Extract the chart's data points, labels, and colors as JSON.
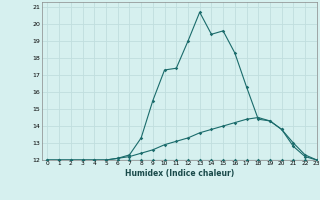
{
  "xlabel": "Humidex (Indice chaleur)",
  "background_color": "#d6f0ef",
  "grid_color": "#c0dede",
  "line_color": "#1a6b6b",
  "xlim": [
    -0.5,
    23
  ],
  "ylim": [
    12,
    21.3
  ],
  "xticks": [
    0,
    1,
    2,
    3,
    4,
    5,
    6,
    7,
    8,
    9,
    10,
    11,
    12,
    13,
    14,
    15,
    16,
    17,
    18,
    19,
    20,
    21,
    22,
    23
  ],
  "yticks": [
    12,
    13,
    14,
    15,
    16,
    17,
    18,
    19,
    20,
    21
  ],
  "series1_x": [
    0,
    1,
    2,
    3,
    4,
    5,
    6,
    7,
    8,
    9,
    10,
    11,
    12,
    13,
    14,
    15,
    16,
    17,
    18,
    19,
    20,
    21,
    22,
    23
  ],
  "series1_y": [
    12,
    12,
    12,
    12,
    12,
    12,
    12,
    12,
    12,
    12,
    12,
    12,
    12,
    12,
    12,
    12,
    12,
    12,
    12,
    12,
    12,
    12,
    12,
    12
  ],
  "series2_x": [
    0,
    1,
    2,
    3,
    4,
    5,
    6,
    7,
    8,
    9,
    10,
    11,
    12,
    13,
    14,
    15,
    16,
    17,
    18,
    19,
    20,
    21,
    22,
    23
  ],
  "series2_y": [
    12,
    12,
    12,
    12,
    12,
    12,
    12.1,
    12.2,
    12.4,
    12.6,
    12.9,
    13.1,
    13.3,
    13.6,
    13.8,
    14.0,
    14.2,
    14.4,
    14.5,
    14.3,
    13.8,
    13.0,
    12.3,
    12.0
  ],
  "series3_x": [
    0,
    1,
    2,
    3,
    4,
    5,
    6,
    7,
    8,
    9,
    10,
    11,
    12,
    13,
    14,
    15,
    16,
    17,
    18,
    19,
    20,
    21,
    22,
    23
  ],
  "series3_y": [
    12,
    12,
    12,
    12,
    12,
    12,
    12.1,
    12.3,
    13.3,
    15.5,
    17.3,
    17.4,
    19.0,
    20.7,
    19.4,
    19.6,
    18.3,
    16.3,
    14.4,
    14.3,
    13.8,
    12.8,
    12.2,
    12.0
  ]
}
